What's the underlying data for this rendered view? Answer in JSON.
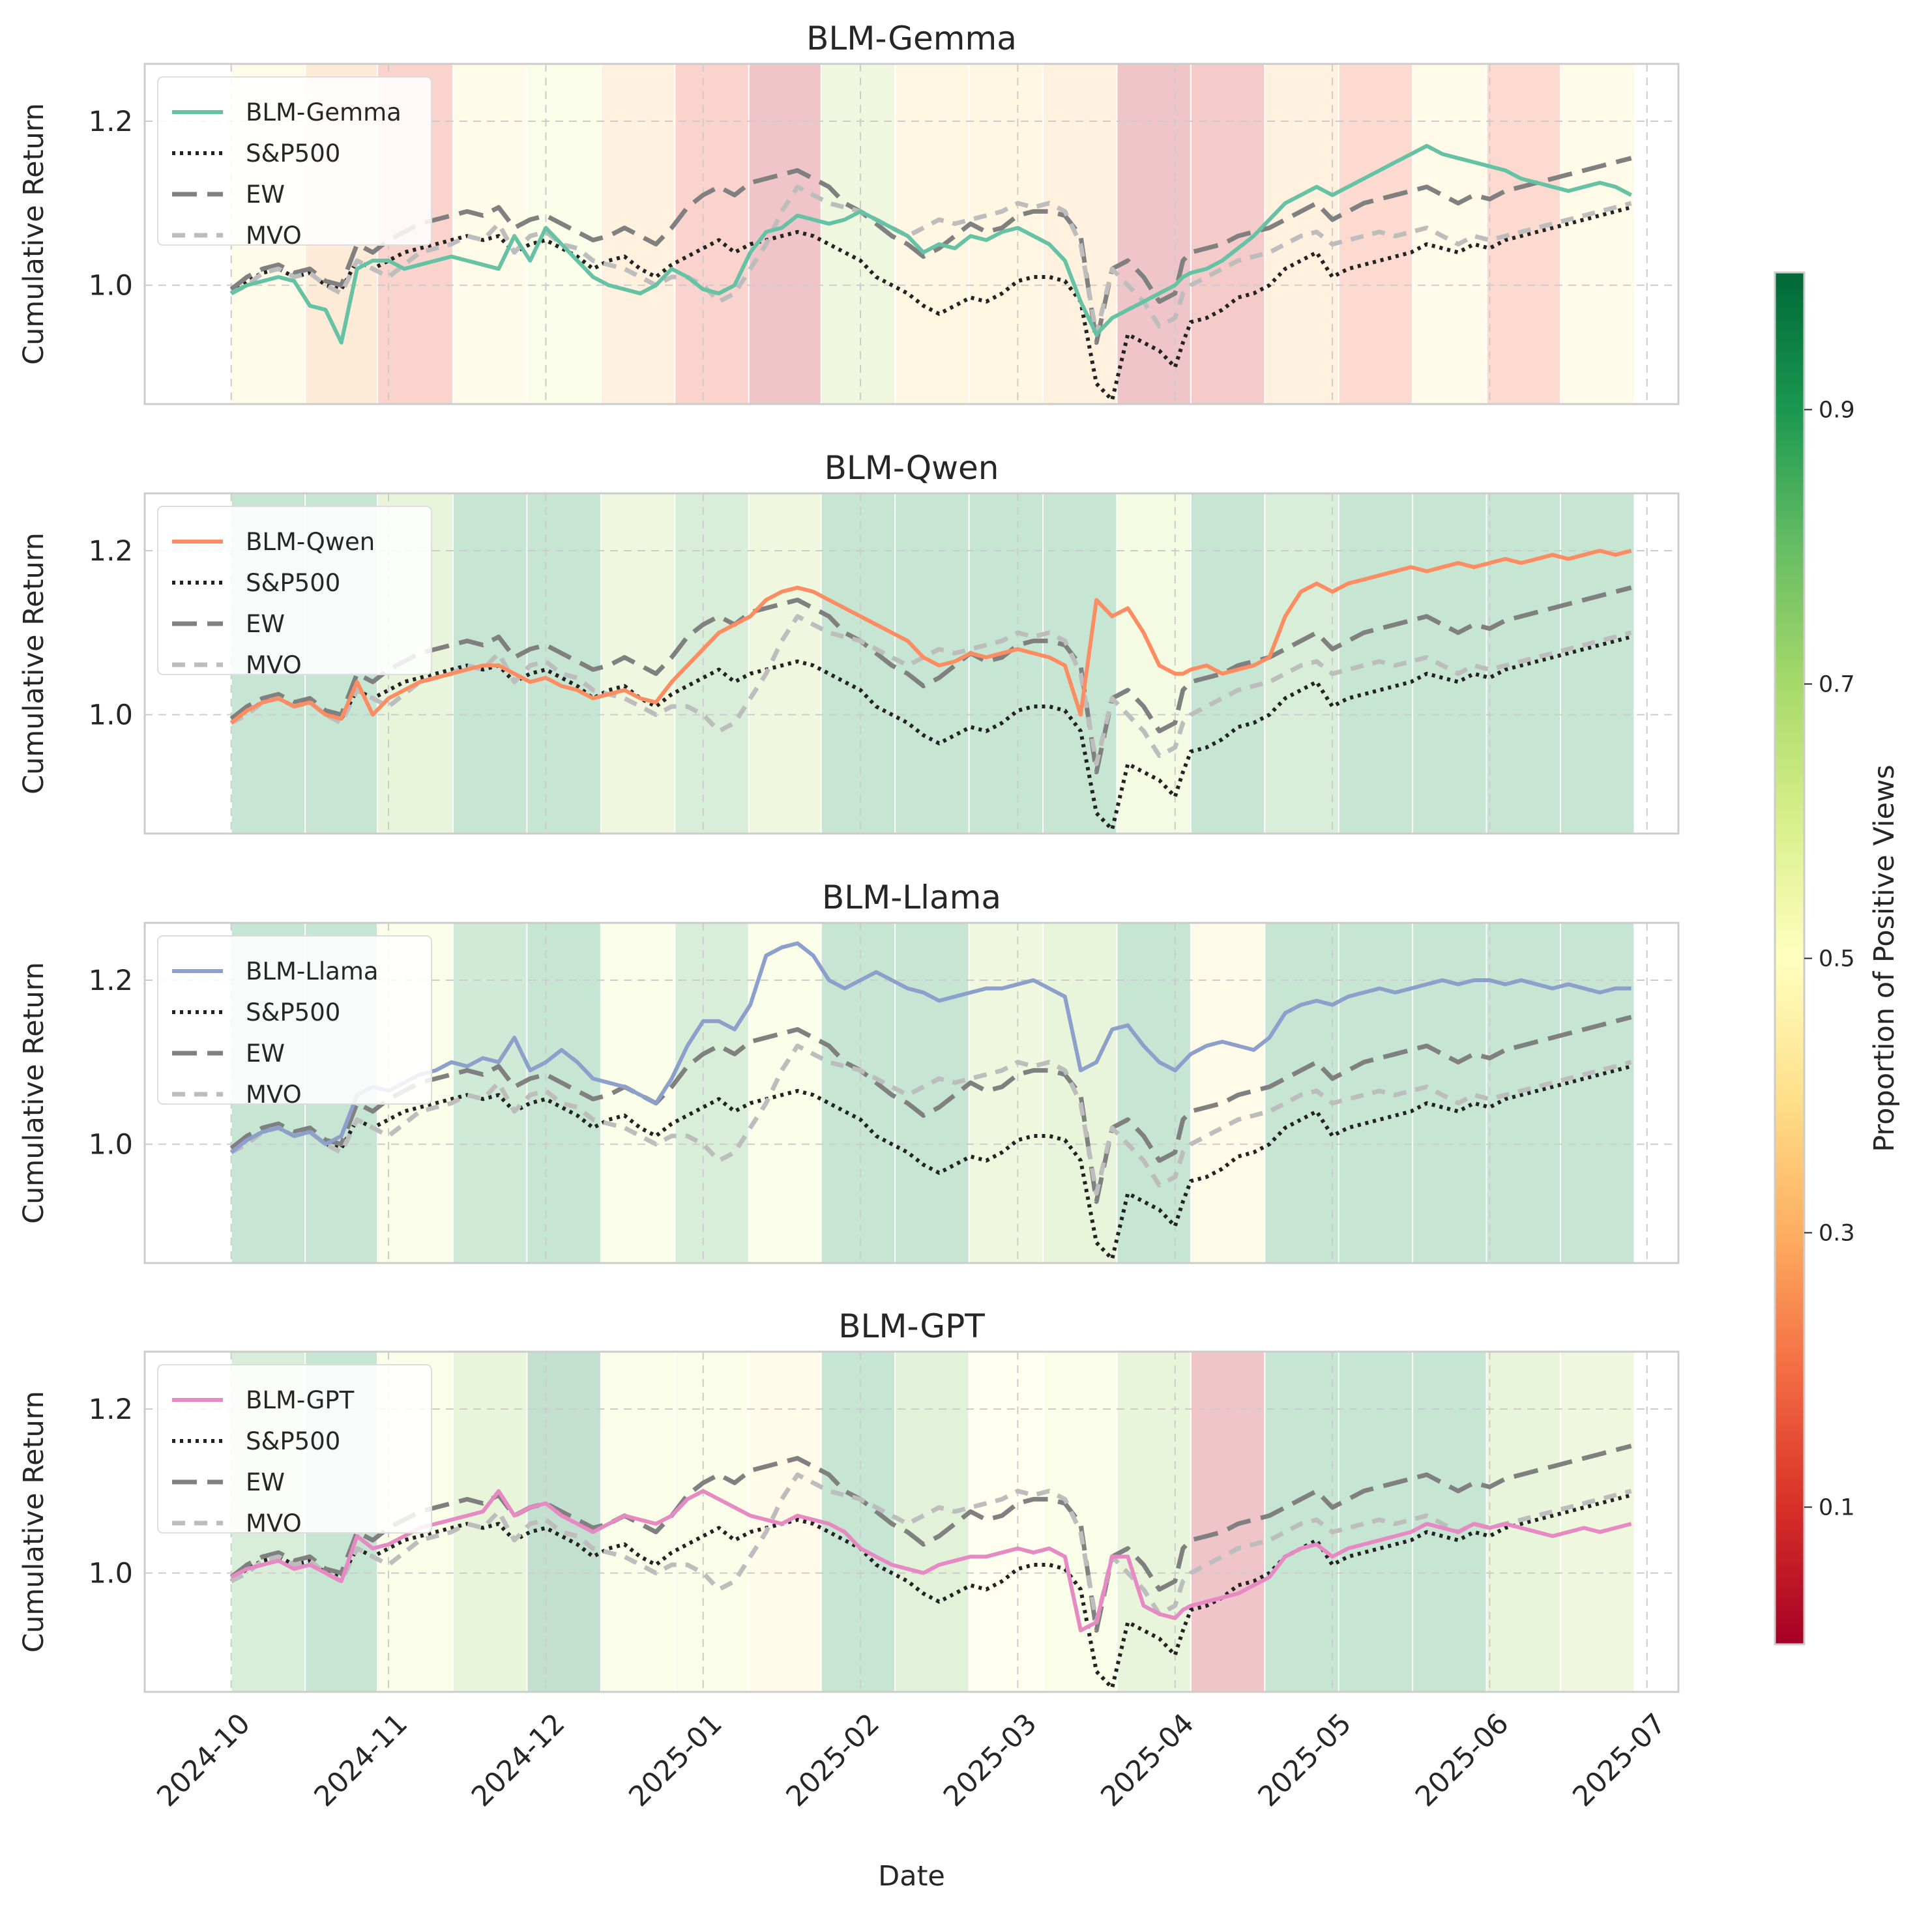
{
  "chart_data": {
    "type": "line",
    "xlabel": "Date",
    "ylabel": "Cumulative Return",
    "ylim": [
      0.855,
      1.27
    ],
    "yticks": [
      1.0,
      1.2
    ],
    "ytick_labels": [
      "1.0",
      "1.2"
    ],
    "xlim_months": [
      -0.55,
      9.2
    ],
    "xtick_labels": [
      "2024-10",
      "2024-11",
      "2024-12",
      "2025-01",
      "2025-02",
      "2025-03",
      "2025-04",
      "2025-05",
      "2025-06",
      "2025-07"
    ],
    "colorbar": {
      "label": "Proportion of Positive Views",
      "ticks": [
        0.1,
        0.3,
        0.5,
        0.7,
        0.9
      ],
      "tick_labels": [
        "0.1",
        "0.3",
        "0.5",
        "0.7",
        "0.9"
      ],
      "range": [
        0,
        1
      ],
      "colormap": "RdYlGn",
      "stops": [
        "#a50026",
        "#d73027",
        "#f46d43",
        "#fdae61",
        "#fee08b",
        "#ffffbf",
        "#d9ef8b",
        "#a6d96a",
        "#66bd63",
        "#1a9850",
        "#006837"
      ]
    },
    "legend_location": "upper-left",
    "period_starts_months": [
      0,
      0.47,
      0.93,
      1.41,
      1.88,
      2.35,
      2.82,
      3.29,
      3.75,
      4.22,
      4.69,
      5.16,
      5.63,
      6.1,
      6.57,
      7.04,
      7.51,
      7.98,
      8.45,
      8.92
    ],
    "panel_views": [
      [
        0.45,
        0.3,
        0.15,
        0.45,
        0.55,
        0.35,
        0.15,
        0.05,
        0.65,
        0.4,
        0.4,
        0.35,
        0.05,
        0.1,
        0.35,
        0.2,
        0.45,
        0.2,
        0.45
      ],
      [
        0.9,
        0.9,
        0.7,
        0.9,
        0.9,
        0.65,
        0.8,
        0.65,
        0.9,
        0.9,
        0.9,
        0.9,
        0.6,
        0.9,
        0.8,
        0.9,
        0.9,
        0.9,
        0.9
      ],
      [
        0.9,
        0.9,
        0.55,
        0.85,
        0.9,
        0.55,
        0.8,
        0.55,
        0.9,
        0.9,
        0.65,
        0.7,
        0.9,
        0.45,
        0.9,
        0.9,
        0.9,
        0.9,
        0.9
      ],
      [
        0.8,
        0.9,
        0.55,
        0.7,
        0.95,
        0.55,
        0.55,
        0.45,
        0.9,
        0.75,
        0.5,
        0.55,
        0.7,
        0.05,
        0.9,
        0.9,
        0.9,
        0.7,
        0.65
      ]
    ],
    "x": [
      0,
      0.1,
      0.2,
      0.3,
      0.4,
      0.5,
      0.6,
      0.7,
      0.8,
      0.9,
      1.0,
      1.1,
      1.2,
      1.3,
      1.4,
      1.5,
      1.6,
      1.7,
      1.8,
      1.9,
      2.0,
      2.1,
      2.2,
      2.3,
      2.4,
      2.5,
      2.6,
      2.7,
      2.8,
      2.9,
      3.0,
      3.1,
      3.2,
      3.3,
      3.4,
      3.5,
      3.6,
      3.7,
      3.8,
      3.9,
      4.0,
      4.1,
      4.2,
      4.3,
      4.4,
      4.5,
      4.6,
      4.7,
      4.8,
      4.9,
      5.0,
      5.1,
      5.2,
      5.3,
      5.4,
      5.5,
      5.6,
      5.7,
      5.8,
      5.9,
      6.0,
      6.05,
      6.1,
      6.2,
      6.3,
      6.4,
      6.5,
      6.6,
      6.7,
      6.8,
      6.9,
      7.0,
      7.1,
      7.2,
      7.3,
      7.4,
      7.5,
      7.6,
      7.7,
      7.8,
      7.9,
      8.0,
      8.1,
      8.2,
      8.3,
      8.4,
      8.5,
      8.6,
      8.7,
      8.8,
      8.9
    ],
    "series_common": [
      {
        "name": "S&P500",
        "values": [
          0.99,
          1.005,
          1.015,
          1.02,
          1.01,
          1.015,
          1.0,
          0.995,
          1.03,
          1.02,
          1.03,
          1.04,
          1.045,
          1.05,
          1.055,
          1.06,
          1.055,
          1.06,
          1.04,
          1.05,
          1.055,
          1.045,
          1.035,
          1.02,
          1.03,
          1.035,
          1.02,
          1.01,
          1.025,
          1.035,
          1.045,
          1.055,
          1.04,
          1.05,
          1.055,
          1.06,
          1.065,
          1.06,
          1.05,
          1.04,
          1.03,
          1.01,
          1.0,
          0.99,
          0.975,
          0.965,
          0.975,
          0.985,
          0.98,
          0.99,
          1.005,
          1.01,
          1.01,
          1.005,
          0.98,
          0.88,
          0.86,
          0.94,
          0.93,
          0.92,
          0.9,
          0.93,
          0.955,
          0.96,
          0.97,
          0.985,
          0.99,
          1.0,
          1.02,
          1.03,
          1.04,
          1.01,
          1.02,
          1.025,
          1.03,
          1.035,
          1.04,
          1.05,
          1.045,
          1.04,
          1.05,
          1.045,
          1.055,
          1.06,
          1.065,
          1.07,
          1.075,
          1.08,
          1.085,
          1.09,
          1.095
        ]
      },
      {
        "name": "EW",
        "values": [
          0.995,
          1.01,
          1.02,
          1.025,
          1.015,
          1.02,
          1.005,
          1.0,
          1.05,
          1.04,
          1.055,
          1.065,
          1.075,
          1.08,
          1.085,
          1.09,
          1.085,
          1.095,
          1.07,
          1.08,
          1.085,
          1.075,
          1.065,
          1.055,
          1.06,
          1.07,
          1.06,
          1.05,
          1.07,
          1.095,
          1.11,
          1.12,
          1.11,
          1.125,
          1.13,
          1.135,
          1.14,
          1.13,
          1.12,
          1.1,
          1.09,
          1.075,
          1.06,
          1.05,
          1.035,
          1.045,
          1.06,
          1.075,
          1.065,
          1.07,
          1.085,
          1.09,
          1.09,
          1.085,
          1.06,
          0.93,
          1.02,
          1.03,
          1.01,
          0.98,
          0.99,
          1.03,
          1.04,
          1.045,
          1.05,
          1.06,
          1.065,
          1.07,
          1.08,
          1.09,
          1.1,
          1.08,
          1.09,
          1.1,
          1.105,
          1.11,
          1.115,
          1.12,
          1.11,
          1.1,
          1.11,
          1.105,
          1.115,
          1.12,
          1.125,
          1.13,
          1.135,
          1.14,
          1.145,
          1.15,
          1.155
        ]
      },
      {
        "name": "MVO",
        "values": [
          0.99,
          1.0,
          1.015,
          1.02,
          1.01,
          1.015,
          1.0,
          0.99,
          1.03,
          1.02,
          1.01,
          1.025,
          1.04,
          1.045,
          1.05,
          1.06,
          1.055,
          1.075,
          1.04,
          1.06,
          1.065,
          1.05,
          1.045,
          1.03,
          1.025,
          1.02,
          1.01,
          1.0,
          1.01,
          1.01,
          1.0,
          0.98,
          0.99,
          1.02,
          1.05,
          1.09,
          1.12,
          1.11,
          1.1,
          1.095,
          1.09,
          1.08,
          1.07,
          1.06,
          1.07,
          1.08,
          1.075,
          1.08,
          1.085,
          1.09,
          1.1,
          1.095,
          1.1,
          1.09,
          1.05,
          0.94,
          1.02,
          1.0,
          0.98,
          0.95,
          0.96,
          0.99,
          1.0,
          1.01,
          1.02,
          1.03,
          1.035,
          1.04,
          1.05,
          1.06,
          1.065,
          1.05,
          1.055,
          1.06,
          1.065,
          1.06,
          1.065,
          1.07,
          1.06,
          1.05,
          1.06,
          1.055,
          1.06,
          1.065,
          1.07,
          1.075,
          1.08,
          1.085,
          1.09,
          1.095,
          1.1
        ]
      }
    ],
    "panels": [
      {
        "title": "BLM-Gemma",
        "series_name": "BLM-Gemma",
        "color": "#66c2a5",
        "values": [
          0.99,
          1.0,
          1.005,
          1.01,
          1.005,
          0.975,
          0.97,
          0.93,
          1.02,
          1.03,
          1.03,
          1.02,
          1.025,
          1.03,
          1.035,
          1.03,
          1.025,
          1.02,
          1.06,
          1.03,
          1.07,
          1.05,
          1.03,
          1.01,
          1.0,
          0.995,
          0.99,
          1.0,
          1.02,
          1.01,
          0.995,
          0.99,
          1.0,
          1.04,
          1.065,
          1.07,
          1.085,
          1.08,
          1.075,
          1.08,
          1.09,
          1.08,
          1.07,
          1.06,
          1.04,
          1.05,
          1.045,
          1.06,
          1.055,
          1.065,
          1.07,
          1.06,
          1.05,
          1.03,
          0.98,
          0.94,
          0.96,
          0.97,
          0.98,
          0.99,
          1.0,
          1.01,
          1.015,
          1.02,
          1.03,
          1.045,
          1.06,
          1.08,
          1.1,
          1.11,
          1.12,
          1.11,
          1.12,
          1.13,
          1.14,
          1.15,
          1.16,
          1.17,
          1.16,
          1.155,
          1.15,
          1.145,
          1.14,
          1.13,
          1.125,
          1.12,
          1.115,
          1.12,
          1.125,
          1.12,
          1.11
        ]
      },
      {
        "title": "BLM-Qwen",
        "series_name": "BLM-Qwen",
        "color": "#fc8d62",
        "values": [
          0.99,
          1.005,
          1.015,
          1.02,
          1.01,
          1.015,
          1.0,
          0.995,
          1.04,
          1.0,
          1.02,
          1.03,
          1.04,
          1.045,
          1.05,
          1.055,
          1.06,
          1.06,
          1.05,
          1.04,
          1.045,
          1.035,
          1.03,
          1.02,
          1.025,
          1.03,
          1.02,
          1.015,
          1.04,
          1.06,
          1.08,
          1.1,
          1.11,
          1.12,
          1.14,
          1.15,
          1.155,
          1.15,
          1.14,
          1.13,
          1.12,
          1.11,
          1.1,
          1.09,
          1.07,
          1.06,
          1.065,
          1.075,
          1.07,
          1.075,
          1.08,
          1.075,
          1.07,
          1.06,
          1.0,
          1.14,
          1.12,
          1.13,
          1.1,
          1.06,
          1.05,
          1.05,
          1.055,
          1.06,
          1.05,
          1.055,
          1.06,
          1.07,
          1.12,
          1.15,
          1.16,
          1.15,
          1.16,
          1.165,
          1.17,
          1.175,
          1.18,
          1.175,
          1.18,
          1.185,
          1.18,
          1.185,
          1.19,
          1.185,
          1.19,
          1.195,
          1.19,
          1.195,
          1.2,
          1.195,
          1.2
        ]
      },
      {
        "title": "BLM-Llama",
        "series_name": "BLM-Llama",
        "color": "#8da0cb",
        "values": [
          0.99,
          1.005,
          1.015,
          1.02,
          1.01,
          1.015,
          1.0,
          1.01,
          1.06,
          1.07,
          1.065,
          1.075,
          1.085,
          1.09,
          1.1,
          1.095,
          1.105,
          1.1,
          1.13,
          1.09,
          1.1,
          1.115,
          1.1,
          1.08,
          1.075,
          1.07,
          1.06,
          1.05,
          1.08,
          1.12,
          1.15,
          1.15,
          1.14,
          1.17,
          1.23,
          1.24,
          1.245,
          1.23,
          1.2,
          1.19,
          1.2,
          1.21,
          1.2,
          1.19,
          1.185,
          1.175,
          1.18,
          1.185,
          1.19,
          1.19,
          1.195,
          1.2,
          1.19,
          1.18,
          1.09,
          1.1,
          1.14,
          1.145,
          1.12,
          1.1,
          1.09,
          1.1,
          1.11,
          1.12,
          1.125,
          1.12,
          1.115,
          1.13,
          1.16,
          1.17,
          1.175,
          1.17,
          1.18,
          1.185,
          1.19,
          1.185,
          1.19,
          1.195,
          1.2,
          1.195,
          1.2,
          1.2,
          1.195,
          1.2,
          1.195,
          1.19,
          1.195,
          1.19,
          1.185,
          1.19,
          1.19
        ]
      },
      {
        "title": "BLM-GPT",
        "series_name": "BLM-GPT",
        "color": "#e78ac3",
        "values": [
          0.995,
          1.005,
          1.01,
          1.015,
          1.005,
          1.01,
          1.0,
          0.99,
          1.045,
          1.03,
          1.035,
          1.045,
          1.055,
          1.06,
          1.065,
          1.07,
          1.075,
          1.1,
          1.07,
          1.08,
          1.085,
          1.07,
          1.06,
          1.05,
          1.06,
          1.07,
          1.065,
          1.06,
          1.07,
          1.09,
          1.1,
          1.09,
          1.08,
          1.07,
          1.065,
          1.06,
          1.07,
          1.065,
          1.06,
          1.05,
          1.03,
          1.02,
          1.01,
          1.005,
          1.0,
          1.01,
          1.015,
          1.02,
          1.02,
          1.025,
          1.03,
          1.025,
          1.03,
          1.02,
          0.93,
          0.94,
          1.02,
          1.02,
          0.96,
          0.95,
          0.945,
          0.955,
          0.96,
          0.965,
          0.97,
          0.975,
          0.985,
          0.995,
          1.02,
          1.03,
          1.035,
          1.02,
          1.03,
          1.035,
          1.04,
          1.045,
          1.05,
          1.06,
          1.055,
          1.05,
          1.06,
          1.055,
          1.06,
          1.055,
          1.05,
          1.045,
          1.05,
          1.055,
          1.05,
          1.055,
          1.06
        ]
      }
    ],
    "series_colors": {
      "S&P500": "#222222",
      "EW": "#808080",
      "MVO": "#bdbdbd"
    }
  }
}
